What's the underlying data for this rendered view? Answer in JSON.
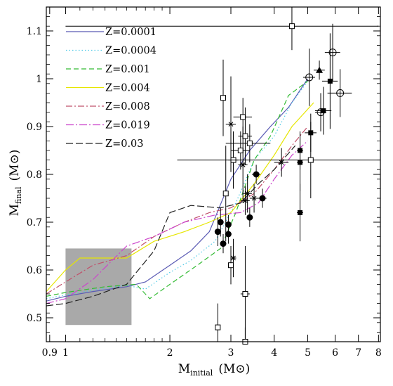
{
  "chart_data": {
    "type": "scatter",
    "xlabel": "M",
    "xlabel_sub": "initial",
    "xlabel_unit": "(M⊙)",
    "ylabel": "M",
    "ylabel_sub": "final",
    "ylabel_unit": "(M⊙)",
    "x_scale": "log",
    "xlim": [
      0.88,
      8.1
    ],
    "ylim": [
      0.45,
      1.15
    ],
    "x_ticks": [
      {
        "v": 0.9,
        "label": "0.9"
      },
      {
        "v": 1,
        "label": "1"
      },
      {
        "v": 2,
        "label": "2"
      },
      {
        "v": 3,
        "label": "3"
      },
      {
        "v": 4,
        "label": "4"
      },
      {
        "v": 5,
        "label": "5"
      },
      {
        "v": 6,
        "label": "6"
      },
      {
        "v": 7,
        "label": "7"
      },
      {
        "v": 8,
        "label": "8"
      }
    ],
    "y_ticks": [
      {
        "v": 0.5,
        "label": "0.5"
      },
      {
        "v": 0.6,
        "label": "0.6"
      },
      {
        "v": 0.7,
        "label": "0.7"
      },
      {
        "v": 0.8,
        "label": "0.8"
      },
      {
        "v": 0.9,
        "label": "0.9"
      },
      {
        "v": 1.0,
        "label": "1"
      },
      {
        "v": 1.1,
        "label": "1.1"
      }
    ],
    "legend_position": "top-left",
    "shaded_region": {
      "x": [
        1.0,
        1.55
      ],
      "y": [
        0.485,
        0.645
      ],
      "color": "#a9a9a9"
    },
    "series": [
      {
        "name": "Z=0.0001",
        "color": "#5a5ab4",
        "dash": "",
        "points": [
          [
            0.88,
            0.535
          ],
          [
            1.0,
            0.545
          ],
          [
            1.2,
            0.555
          ],
          [
            1.5,
            0.565
          ],
          [
            1.7,
            0.575
          ],
          [
            2.0,
            0.61
          ],
          [
            2.3,
            0.64
          ],
          [
            2.6,
            0.68
          ],
          [
            3.0,
            0.79
          ],
          [
            3.4,
            0.85
          ],
          [
            3.9,
            0.9
          ],
          [
            4.4,
            0.94
          ],
          [
            5.0,
            1.0
          ]
        ]
      },
      {
        "name": "Z=0.0004",
        "color": "#4ec9e6",
        "dash": "1.5,3",
        "points": [
          [
            0.88,
            0.54
          ],
          [
            1.0,
            0.548
          ],
          [
            1.2,
            0.558
          ],
          [
            1.5,
            0.568
          ],
          [
            1.7,
            0.56
          ],
          [
            2.0,
            0.595
          ],
          [
            2.3,
            0.62
          ],
          [
            2.7,
            0.66
          ],
          [
            3.1,
            0.74
          ],
          [
            3.5,
            0.83
          ],
          [
            4.0,
            0.88
          ],
          [
            4.5,
            0.95
          ],
          [
            5.0,
            0.995
          ]
        ]
      },
      {
        "name": "Z=0.001",
        "color": "#33bb33",
        "dash": "7,4",
        "points": [
          [
            0.88,
            0.545
          ],
          [
            1.0,
            0.553
          ],
          [
            1.3,
            0.565
          ],
          [
            1.6,
            0.57
          ],
          [
            1.75,
            0.54
          ],
          [
            2.0,
            0.57
          ],
          [
            2.4,
            0.61
          ],
          [
            2.8,
            0.645
          ],
          [
            3.1,
            0.72
          ],
          [
            3.5,
            0.83
          ],
          [
            3.9,
            0.88
          ],
          [
            4.4,
            0.965
          ],
          [
            5.0,
            0.995
          ]
        ]
      },
      {
        "name": "Z=0.004",
        "color": "#e6e600",
        "dash": "",
        "points": [
          [
            0.88,
            0.555
          ],
          [
            1.0,
            0.6
          ],
          [
            1.1,
            0.625
          ],
          [
            1.5,
            0.625
          ],
          [
            1.8,
            0.66
          ],
          [
            2.2,
            0.68
          ],
          [
            2.6,
            0.7
          ],
          [
            3.0,
            0.72
          ],
          [
            3.5,
            0.78
          ],
          [
            4.0,
            0.84
          ],
          [
            4.5,
            0.9
          ],
          [
            5.2,
            0.95
          ]
        ]
      },
      {
        "name": "Z=0.008",
        "color": "#c0506a",
        "dash": "9,3,2,3",
        "points": [
          [
            0.88,
            0.55
          ],
          [
            1.0,
            0.575
          ],
          [
            1.2,
            0.61
          ],
          [
            1.5,
            0.63
          ],
          [
            1.8,
            0.67
          ],
          [
            2.2,
            0.7
          ],
          [
            2.6,
            0.72
          ],
          [
            3.0,
            0.73
          ],
          [
            3.5,
            0.76
          ],
          [
            4.0,
            0.81
          ],
          [
            4.5,
            0.86
          ],
          [
            5.0,
            0.9
          ]
        ]
      },
      {
        "name": "Z=0.019",
        "color": "#cc44cc",
        "dash": "11,3,2,3",
        "points": [
          [
            0.88,
            0.53
          ],
          [
            1.0,
            0.54
          ],
          [
            1.2,
            0.58
          ],
          [
            1.5,
            0.65
          ],
          [
            1.8,
            0.67
          ],
          [
            2.2,
            0.7
          ],
          [
            2.7,
            0.715
          ],
          [
            3.2,
            0.72
          ],
          [
            3.6,
            0.74
          ],
          [
            4.0,
            0.79
          ],
          [
            4.5,
            0.84
          ],
          [
            5.0,
            0.87
          ]
        ]
      },
      {
        "name": "Z=0.03",
        "color": "#222222",
        "dash": "10,4",
        "points": [
          [
            0.88,
            0.525
          ],
          [
            1.0,
            0.53
          ],
          [
            1.2,
            0.545
          ],
          [
            1.5,
            0.57
          ],
          [
            1.8,
            0.64
          ],
          [
            2.0,
            0.72
          ],
          [
            2.3,
            0.735
          ],
          [
            2.8,
            0.73
          ],
          [
            3.2,
            0.74
          ],
          [
            3.6,
            0.78
          ],
          [
            4.0,
            0.81
          ],
          [
            4.6,
            0.86
          ]
        ]
      }
    ],
    "observations": [
      {
        "x": 2.75,
        "y": 0.68,
        "marker": "filled-circle",
        "xerr": 0.05,
        "yerr": 0.03
      },
      {
        "x": 2.8,
        "y": 0.7,
        "marker": "filled-circle",
        "xerr": 0.05,
        "yerr": 0.03
      },
      {
        "x": 2.85,
        "y": 0.655,
        "marker": "filled-circle",
        "xerr": 0.05,
        "yerr": 0.02
      },
      {
        "x": 2.95,
        "y": 0.695,
        "marker": "filled-circle",
        "xerr": 0.05,
        "yerr": 0.02
      },
      {
        "x": 2.95,
        "y": 0.675,
        "marker": "filled-circle",
        "xerr": 0.05,
        "yerr": 0.02
      },
      {
        "x": 3.4,
        "y": 0.71,
        "marker": "filled-circle",
        "xerr": 0.05,
        "yerr": 0.02
      },
      {
        "x": 3.55,
        "y": 0.8,
        "marker": "filled-circle",
        "xerr": 0.1,
        "yerr": 0.02
      },
      {
        "x": 3.7,
        "y": 0.75,
        "marker": "filled-circle",
        "xerr": 0.1,
        "yerr": 0.02
      },
      {
        "x": 4.75,
        "y": 0.85,
        "marker": "filled-square",
        "xerr": 0.1,
        "yerr": 0.04
      },
      {
        "x": 4.75,
        "y": 0.825,
        "marker": "filled-square",
        "xerr": 0.1,
        "yerr": 0.06
      },
      {
        "x": 4.75,
        "y": 0.72,
        "marker": "filled-square",
        "xerr": 0.1,
        "yerr": 0.06
      },
      {
        "x": 5.1,
        "y": 0.887,
        "marker": "filled-square",
        "xerr": 0.2,
        "yerr": 0.04
      },
      {
        "x": 5.55,
        "y": 0.933,
        "marker": "filled-square",
        "xerr": 0.3,
        "yerr": 0.05
      },
      {
        "x": 5.8,
        "y": 0.995,
        "marker": "filled-square",
        "xerr": 0.3,
        "yerr": 0.1
      },
      {
        "x": 5.4,
        "y": 1.018,
        "marker": "filled-triangle",
        "xerr": 0.2,
        "yerr": 0.02
      },
      {
        "x": 2.85,
        "y": 0.96,
        "marker": "open-square",
        "xerr": 0.05,
        "yerr": 0.08
      },
      {
        "x": 2.9,
        "y": 0.76,
        "marker": "open-square",
        "xerr": 0.05,
        "yerr": 0.1
      },
      {
        "x": 3.0,
        "y": 0.61,
        "marker": "open-square",
        "xerr": 0.05,
        "yerr": 0.04
      },
      {
        "x": 3.05,
        "y": 0.83,
        "marker": "open-square",
        "xerr": 0.1,
        "yerr": 0.06
      },
      {
        "x": 3.2,
        "y": 0.85,
        "marker": "open-square",
        "xerr": 0.2,
        "yerr": 0.04
      },
      {
        "x": 3.25,
        "y": 0.92,
        "marker": "open-square",
        "xerr": 0.2,
        "yerr": 0.04
      },
      {
        "x": 3.3,
        "y": 0.88,
        "marker": "open-square",
        "xerr": 0.15,
        "yerr": 0.06
      },
      {
        "x": 3.3,
        "y": 0.55,
        "marker": "open-square",
        "xerr": 0.1,
        "yerr": 0.1
      },
      {
        "x": 3.3,
        "y": 0.45,
        "marker": "open-square",
        "xerr": 0.1,
        "yerr": 0.03
      },
      {
        "x": 2.75,
        "y": 0.48,
        "marker": "open-square",
        "xerr": 0.03,
        "yerr": 0.05
      },
      {
        "x": 3.4,
        "y": 0.865,
        "marker": "open-square",
        "xerr": 0.5,
        "yerr": 0.04
      },
      {
        "x": 4.5,
        "y": 1.11,
        "marker": "open-square",
        "xerr": 3.5,
        "yerr": 0.05
      },
      {
        "x": 5.1,
        "y": 0.83,
        "marker": "open-square",
        "xerr": 3.0,
        "yerr": 0.08
      },
      {
        "x": 5.45,
        "y": 0.93,
        "marker": "open-circle",
        "xerr": 0.2,
        "yerr": 0.04
      },
      {
        "x": 5.05,
        "y": 1.003,
        "marker": "open-circle",
        "xerr": 0.2,
        "yerr": 0.06
      },
      {
        "x": 5.9,
        "y": 1.055,
        "marker": "open-circle",
        "xerr": 0.3,
        "yerr": 0.06
      },
      {
        "x": 6.2,
        "y": 0.97,
        "marker": "open-circle",
        "xerr": 0.5,
        "yerr": 0.05
      },
      {
        "x": 3.0,
        "y": 0.905,
        "marker": "asterisk",
        "xerr": 0.1,
        "yerr": 0.1
      },
      {
        "x": 3.05,
        "y": 0.625,
        "marker": "asterisk",
        "xerr": 0.05,
        "yerr": 0.04
      },
      {
        "x": 3.25,
        "y": 0.82,
        "marker": "asterisk",
        "xerr": 0.1,
        "yerr": 0.08
      },
      {
        "x": 3.35,
        "y": 0.76,
        "marker": "asterisk",
        "xerr": 0.1,
        "yerr": 0.04
      },
      {
        "x": 3.3,
        "y": 0.745,
        "marker": "asterisk",
        "xerr": 0.1,
        "yerr": 0.03
      },
      {
        "x": 3.5,
        "y": 0.75,
        "marker": "asterisk",
        "xerr": 0.1,
        "yerr": 0.03
      },
      {
        "x": 4.2,
        "y": 0.825,
        "marker": "asterisk",
        "xerr": 0.2,
        "yerr": 0.03
      }
    ]
  }
}
